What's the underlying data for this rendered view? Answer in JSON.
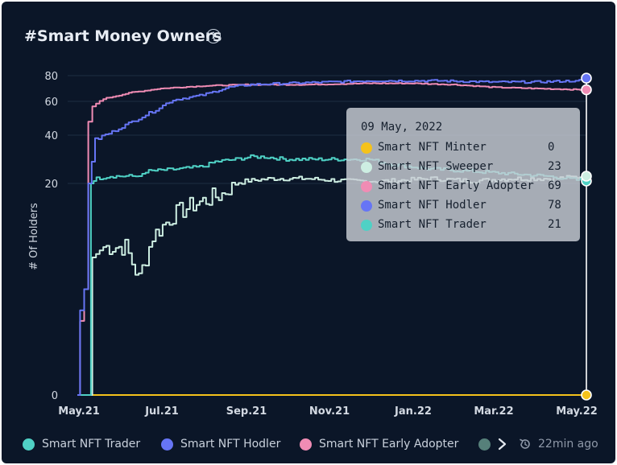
{
  "header": {
    "title": "#Smart Money Owners"
  },
  "chart_data": {
    "type": "line",
    "ylabel": "# Of Holders",
    "xlabel": "",
    "y_ticks": [
      0,
      20,
      40,
      60,
      80
    ],
    "x_ticks": [
      "May.21",
      "Jul.21",
      "Sep.21",
      "Nov.21",
      "Jan.22",
      "Mar.22",
      "May.22"
    ],
    "x_range": [
      "2021-05-01",
      "2022-05-09"
    ],
    "ylim": [
      0,
      80
    ],
    "grid": "horizontal",
    "legend": "bottom",
    "series": [
      {
        "name": "Smart NFT Trader",
        "color": "#4fd1c5",
        "points": [
          [
            "2021-05-01",
            0
          ],
          [
            "2021-05-10",
            0
          ],
          [
            "2021-05-11",
            20
          ],
          [
            "2021-05-15",
            22
          ],
          [
            "2021-05-25",
            23
          ],
          [
            "2021-06-15",
            23
          ],
          [
            "2021-06-20",
            25
          ],
          [
            "2021-07-15",
            26
          ],
          [
            "2021-08-01",
            27
          ],
          [
            "2021-08-10",
            29
          ],
          [
            "2021-08-25",
            30
          ],
          [
            "2021-09-05",
            31
          ],
          [
            "2021-09-15",
            31
          ],
          [
            "2021-10-01",
            30
          ],
          [
            "2021-11-01",
            30
          ],
          [
            "2021-12-01",
            30
          ],
          [
            "2021-12-15",
            28
          ],
          [
            "2022-01-15",
            26
          ],
          [
            "2022-02-15",
            25
          ],
          [
            "2022-03-15",
            24
          ],
          [
            "2022-04-10",
            23
          ],
          [
            "2022-05-09",
            21
          ]
        ]
      },
      {
        "name": "Smart NFT Hodler",
        "color": "#6675f5",
        "points": [
          [
            "2021-05-01",
            0
          ],
          [
            "2021-05-03",
            8
          ],
          [
            "2021-05-06",
            10
          ],
          [
            "2021-05-09",
            20
          ],
          [
            "2021-05-14",
            38
          ],
          [
            "2021-05-24",
            41
          ],
          [
            "2021-06-10",
            48
          ],
          [
            "2021-06-25",
            54
          ],
          [
            "2021-07-10",
            61
          ],
          [
            "2021-08-01",
            65
          ],
          [
            "2021-08-20",
            71
          ],
          [
            "2021-09-05",
            73
          ],
          [
            "2021-10-01",
            74
          ],
          [
            "2021-11-01",
            75
          ],
          [
            "2021-12-01",
            76
          ],
          [
            "2022-01-01",
            76
          ],
          [
            "2022-01-20",
            76
          ],
          [
            "2022-03-01",
            75
          ],
          [
            "2022-04-01",
            75
          ],
          [
            "2022-05-01",
            76
          ],
          [
            "2022-05-09",
            78
          ]
        ]
      },
      {
        "name": "Smart NFT Early Adopter",
        "color": "#f08cb4",
        "points": [
          [
            "2021-05-01",
            0
          ],
          [
            "2021-05-03",
            7
          ],
          [
            "2021-05-06",
            10
          ],
          [
            "2021-05-09",
            48
          ],
          [
            "2021-05-12",
            57
          ],
          [
            "2021-05-20",
            62
          ],
          [
            "2021-06-10",
            67
          ],
          [
            "2021-07-01",
            70
          ],
          [
            "2021-08-01",
            72
          ],
          [
            "2021-09-01",
            73
          ],
          [
            "2021-10-15",
            73
          ],
          [
            "2021-12-01",
            74
          ],
          [
            "2022-01-01",
            74
          ],
          [
            "2022-02-01",
            73
          ],
          [
            "2022-03-01",
            71
          ],
          [
            "2022-04-01",
            70
          ],
          [
            "2022-05-09",
            69
          ]
        ]
      },
      {
        "name": "Smart NFT Sweeper",
        "color": "#cdeee2",
        "points": [
          [
            "2021-05-01",
            0
          ],
          [
            "2021-05-09",
            0
          ],
          [
            "2021-05-12",
            13
          ],
          [
            "2021-05-20",
            14
          ],
          [
            "2021-06-05",
            14
          ],
          [
            "2021-06-15",
            11
          ],
          [
            "2021-06-25",
            15
          ],
          [
            "2021-07-10",
            17
          ],
          [
            "2021-07-25",
            18
          ],
          [
            "2021-08-15",
            19
          ],
          [
            "2021-09-01",
            21
          ],
          [
            "2021-09-20",
            22
          ],
          [
            "2021-10-15",
            22
          ],
          [
            "2021-11-15",
            21
          ],
          [
            "2021-12-15",
            21
          ],
          [
            "2022-01-15",
            22
          ],
          [
            "2022-02-15",
            21
          ],
          [
            "2022-03-15",
            22
          ],
          [
            "2022-04-15",
            22
          ],
          [
            "2022-05-09",
            23
          ]
        ]
      },
      {
        "name": "Smart NFT Minter",
        "color": "#f5c21b",
        "points": [
          [
            "2021-05-01",
            0
          ],
          [
            "2022-05-09",
            0
          ]
        ]
      }
    ],
    "hover": {
      "date": "2022-05-09"
    }
  },
  "tooltip": {
    "date": "09 May, 2022",
    "rows": [
      {
        "name": "Smart NFT Minter",
        "value": "0",
        "color": "#f5c21b"
      },
      {
        "name": "Smart NFT Sweeper",
        "value": "23",
        "color": "#cdeee2"
      },
      {
        "name": "Smart NFT Early Adopter",
        "value": "69",
        "color": "#f08cb4"
      },
      {
        "name": "Smart NFT Hodler",
        "value": "78",
        "color": "#6675f5"
      },
      {
        "name": "Smart NFT Trader",
        "value": "21",
        "color": "#4fd1c5"
      }
    ]
  },
  "legend": {
    "items": [
      {
        "label": "Smart NFT Trader",
        "color": "#4fd1c5"
      },
      {
        "label": "Smart NFT Hodler",
        "color": "#6675f5"
      },
      {
        "label": "Smart NFT Early Adopter",
        "color": "#f08cb4"
      },
      {
        "label": "",
        "color": "#56807a"
      }
    ],
    "more_icon": "chevron-right-icon"
  },
  "footer": {
    "refresh_icon": "clock-refresh-icon",
    "updated": "22min ago"
  }
}
